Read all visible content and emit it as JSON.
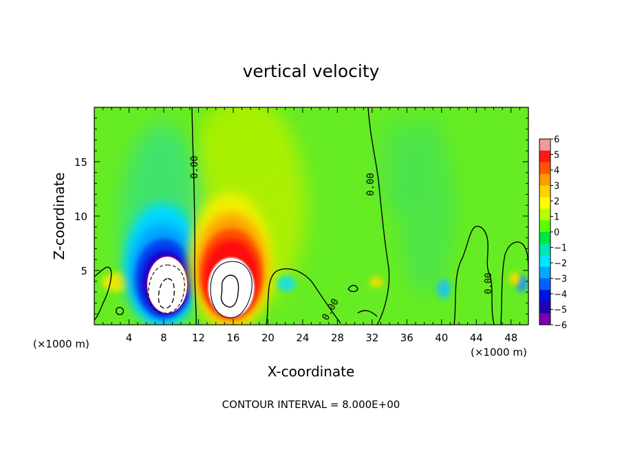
{
  "chart_data": {
    "type": "heatmap",
    "title": "vertical velocity",
    "xlabel": "X-coordinate",
    "ylabel": "Z-coordinate",
    "x_unit_left": "(×1000 m)",
    "x_unit_right": "(×1000 m)",
    "xlim": [
      0,
      50
    ],
    "ylim": [
      0,
      20
    ],
    "x_ticks": [
      4,
      8,
      12,
      16,
      20,
      24,
      28,
      32,
      36,
      40,
      44,
      48
    ],
    "y_ticks": [
      5,
      10,
      15
    ],
    "colorbar": {
      "min": -6,
      "max": 6,
      "labels": [
        "6",
        "5",
        "4",
        "3",
        "2",
        "1",
        "0",
        "−1",
        "−2",
        "−3",
        "−4",
        "−5",
        "−6"
      ],
      "colors": [
        "#f29a9a",
        "#ff1a1a",
        "#ff5500",
        "#ff9a00",
        "#ffd200",
        "#ffff00",
        "#b8ff00",
        "#5cff00",
        "#00e640",
        "#00e6b0",
        "#00e6ff",
        "#00a8ff",
        "#0060ff",
        "#0010e0",
        "#2000b0",
        "#7a00b0"
      ]
    },
    "features": [
      {
        "label": "updraft core",
        "x": 15.8,
        "z": 3.5,
        "w": 9.5
      },
      {
        "label": "downdraft core",
        "x": 8.7,
        "z": 3.0,
        "w": -9.5
      }
    ],
    "contour_labels": [
      "0.00",
      "0.00",
      "0.00",
      "0.00"
    ],
    "footer": "CONTOUR INTERVAL = 8.000E+00"
  }
}
